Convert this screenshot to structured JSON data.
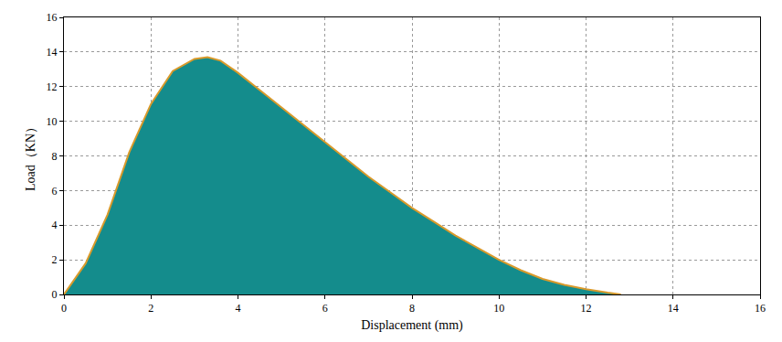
{
  "chart_data": {
    "type": "area",
    "x_label": "Displacement (mm)",
    "y_label": "Load（KN）",
    "x": [
      0,
      0.5,
      1,
      1.5,
      2,
      2.5,
      3,
      3.3,
      3.6,
      4,
      4.5,
      5,
      5.5,
      6,
      6.5,
      7,
      7.5,
      8,
      8.5,
      9,
      9.5,
      10,
      10.5,
      11,
      11.5,
      12,
      12.5,
      12.8
    ],
    "values": [
      0,
      1.8,
      4.6,
      8.2,
      11.0,
      12.9,
      13.6,
      13.7,
      13.5,
      12.8,
      11.8,
      10.8,
      9.8,
      8.8,
      7.8,
      6.8,
      5.9,
      5.0,
      4.2,
      3.4,
      2.7,
      2.0,
      1.4,
      0.9,
      0.55,
      0.3,
      0.1,
      0
    ],
    "color": "#148c8c",
    "xlim": [
      0,
      16
    ],
    "xticks": [
      0,
      2,
      4,
      6,
      8,
      10,
      12,
      14,
      16
    ],
    "ylim": [
      0,
      16
    ],
    "yticks": [
      0,
      2,
      4,
      6,
      8,
      10,
      12,
      14,
      16
    ],
    "grid": true
  }
}
